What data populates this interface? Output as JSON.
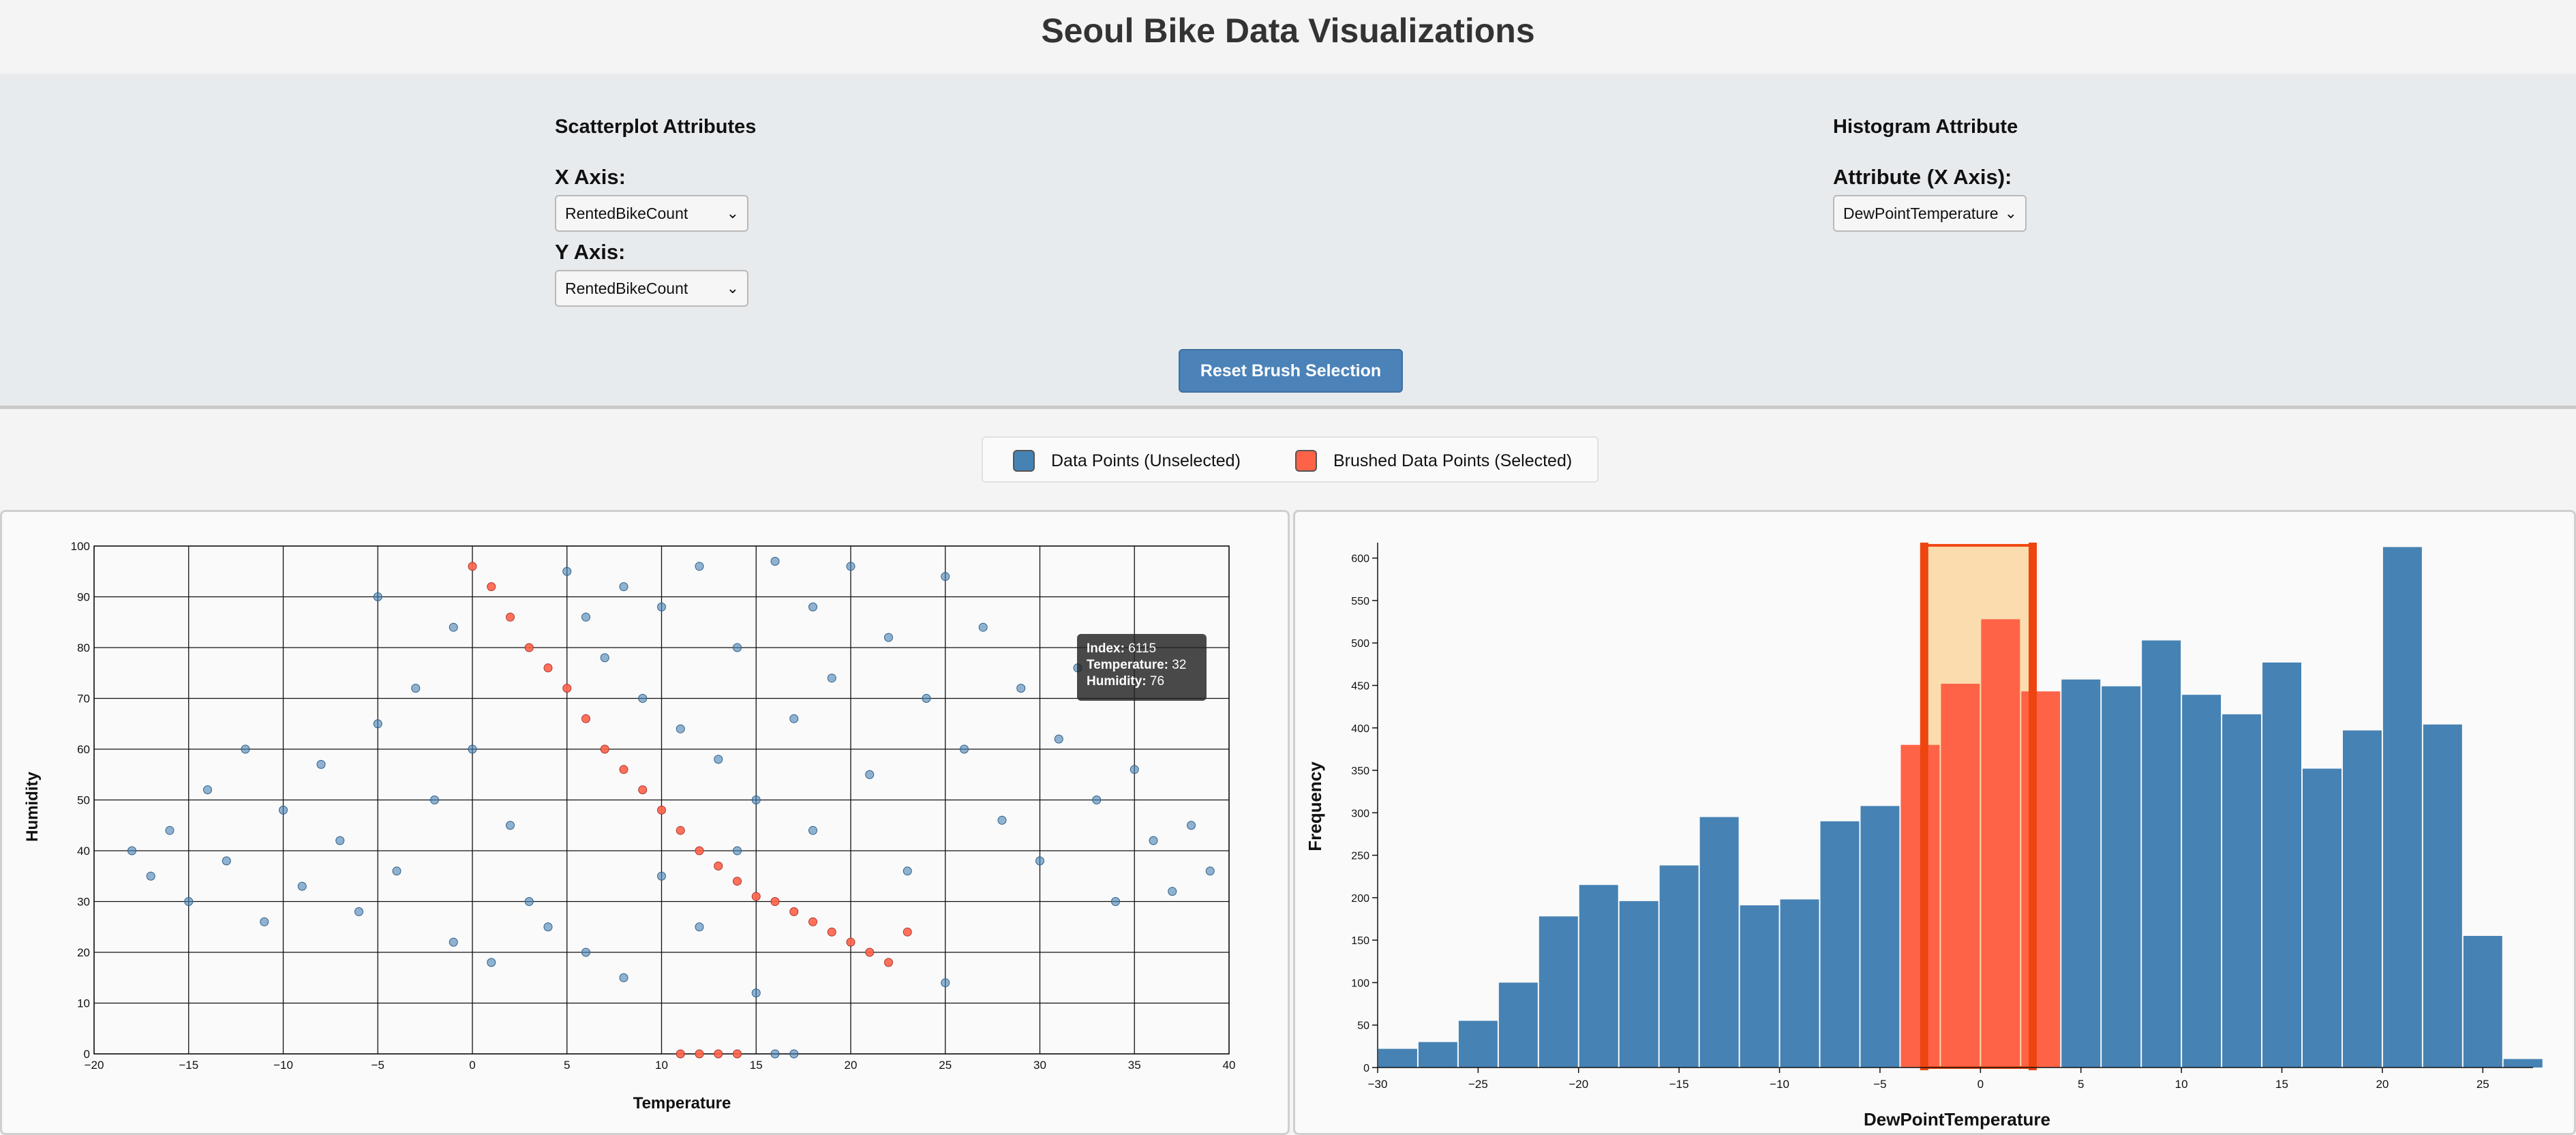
{
  "page": {
    "title": "Seoul Bike Data Visualizations"
  },
  "controls": {
    "scatter_heading": "Scatterplot Attributes",
    "x_axis_label": "X Axis:",
    "x_axis_value": "RentedBikeCount",
    "y_axis_label": "Y Axis:",
    "y_axis_value": "RentedBikeCount",
    "hist_heading": "Histogram Attribute",
    "hist_axis_label": "Attribute (X Axis):",
    "hist_axis_value": "DewPointTemperature",
    "reset_label": "Reset Brush Selection"
  },
  "legend": {
    "unselected_label": "Data Points (Unselected)",
    "selected_label": "Brushed Data Points (Selected)",
    "unselected_color": "#4682b4",
    "selected_color": "#ff6347"
  },
  "tooltip": {
    "index_label": "Index:",
    "index_value": "6115",
    "temp_label": "Temperature:",
    "temp_value": "32",
    "hum_label": "Humidity:",
    "hum_value": "76"
  },
  "chart_data": [
    {
      "type": "scatter",
      "title": "",
      "xlabel": "Temperature",
      "ylabel": "Humidity",
      "xlim": [
        -20,
        40
      ],
      "ylim": [
        0,
        100
      ],
      "x_ticks": [
        -20,
        -15,
        -10,
        -5,
        0,
        5,
        10,
        15,
        20,
        25,
        30,
        35,
        40
      ],
      "y_ticks": [
        0,
        10,
        20,
        30,
        40,
        50,
        60,
        70,
        80,
        90,
        100
      ],
      "grid": true,
      "series": [
        {
          "name": "Data Points (Unselected)",
          "points": [
            [
              -18,
              40
            ],
            [
              -17,
              35
            ],
            [
              -16,
              44
            ],
            [
              -15,
              30
            ],
            [
              -14,
              52
            ],
            [
              -13,
              38
            ],
            [
              -12,
              60
            ],
            [
              -11,
              26
            ],
            [
              -10,
              48
            ],
            [
              -9,
              33
            ],
            [
              -8,
              57
            ],
            [
              -7,
              42
            ],
            [
              -6,
              28
            ],
            [
              -5,
              65
            ],
            [
              -5,
              90
            ],
            [
              -4,
              36
            ],
            [
              -3,
              72
            ],
            [
              -2,
              50
            ],
            [
              -1,
              84
            ],
            [
              -1,
              22
            ],
            [
              0,
              60
            ],
            [
              1,
              18
            ],
            [
              2,
              45
            ],
            [
              3,
              30
            ],
            [
              4,
              25
            ],
            [
              5,
              95
            ],
            [
              6,
              86
            ],
            [
              6,
              20
            ],
            [
              7,
              78
            ],
            [
              8,
              92
            ],
            [
              8,
              15
            ],
            [
              9,
              70
            ],
            [
              10,
              88
            ],
            [
              10,
              35
            ],
            [
              11,
              64
            ],
            [
              12,
              96
            ],
            [
              12,
              25
            ],
            [
              13,
              58
            ],
            [
              14,
              80
            ],
            [
              14,
              40
            ],
            [
              15,
              50
            ],
            [
              15,
              12
            ],
            [
              16,
              97
            ],
            [
              17,
              66
            ],
            [
              18,
              44
            ],
            [
              18,
              88
            ],
            [
              19,
              74
            ],
            [
              20,
              96
            ],
            [
              21,
              55
            ],
            [
              22,
              82
            ],
            [
              23,
              36
            ],
            [
              24,
              70
            ],
            [
              25,
              94
            ],
            [
              25,
              14
            ],
            [
              26,
              60
            ],
            [
              27,
              84
            ],
            [
              28,
              46
            ],
            [
              29,
              72
            ],
            [
              30,
              38
            ],
            [
              31,
              62
            ],
            [
              32,
              76
            ],
            [
              33,
              50
            ],
            [
              34,
              30
            ],
            [
              35,
              56
            ],
            [
              36,
              42
            ],
            [
              37,
              32
            ],
            [
              38,
              45
            ],
            [
              39,
              36
            ],
            [
              16,
              0
            ],
            [
              17,
              0
            ]
          ]
        },
        {
          "name": "Brushed Data Points (Selected)",
          "points": [
            [
              0,
              96
            ],
            [
              1,
              92
            ],
            [
              2,
              86
            ],
            [
              3,
              80
            ],
            [
              4,
              76
            ],
            [
              5,
              72
            ],
            [
              6,
              66
            ],
            [
              7,
              60
            ],
            [
              8,
              56
            ],
            [
              9,
              52
            ],
            [
              10,
              48
            ],
            [
              11,
              44
            ],
            [
              12,
              40
            ],
            [
              13,
              37
            ],
            [
              14,
              34
            ],
            [
              15,
              31
            ],
            [
              16,
              30
            ],
            [
              17,
              28
            ],
            [
              18,
              26
            ],
            [
              19,
              24
            ],
            [
              20,
              22
            ],
            [
              21,
              20
            ],
            [
              22,
              18
            ],
            [
              23,
              24
            ],
            [
              11,
              0
            ],
            [
              12,
              0
            ],
            [
              13,
              0
            ],
            [
              14,
              0
            ]
          ]
        }
      ]
    },
    {
      "type": "bar",
      "title": "",
      "xlabel": "DewPointTemperature",
      "ylabel": "Frequency",
      "xlim": [
        -30,
        27.5
      ],
      "ylim": [
        0,
        615
      ],
      "x_ticks": [
        -30,
        -25,
        -20,
        -15,
        -10,
        -5,
        0,
        5,
        10,
        15,
        20,
        25
      ],
      "y_ticks": [
        0,
        50,
        100,
        150,
        200,
        250,
        300,
        350,
        400,
        450,
        500,
        550,
        600
      ],
      "bin_width": 2,
      "bin_starts": [
        -30,
        -28,
        -26,
        -24,
        -22,
        -20,
        -18,
        -16,
        -14,
        -12,
        -10,
        -8,
        -6,
        -4,
        -2,
        0,
        2,
        4,
        6,
        8,
        10,
        12,
        14,
        16,
        18,
        20,
        22,
        24,
        26
      ],
      "values": [
        22,
        30,
        55,
        100,
        178,
        215,
        196,
        238,
        295,
        191,
        198,
        290,
        308,
        380,
        452,
        528,
        443,
        457,
        449,
        503,
        439,
        416,
        477,
        352,
        397,
        613,
        404,
        155,
        10
      ],
      "selected_bins": [
        13,
        14,
        15,
        16
      ],
      "brush_range": [
        -2.8,
        2.6
      ]
    }
  ]
}
